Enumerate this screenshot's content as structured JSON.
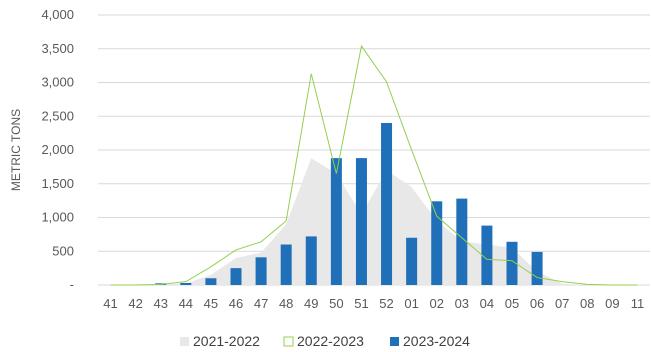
{
  "chart_data": {
    "type": "bar",
    "ylabel": "METRIC TONS",
    "ylim": [
      0,
      4000
    ],
    "y_ticks": [
      {
        "value": 0,
        "label": "-"
      },
      {
        "value": 500,
        "label": "500"
      },
      {
        "value": 1000,
        "label": "1,000"
      },
      {
        "value": 1500,
        "label": "1,500"
      },
      {
        "value": 2000,
        "label": "2,000"
      },
      {
        "value": 2500,
        "label": "2,500"
      },
      {
        "value": 3000,
        "label": "3,000"
      },
      {
        "value": 3500,
        "label": "3,500"
      },
      {
        "value": 4000,
        "label": "4,000"
      }
    ],
    "categories": [
      "41",
      "42",
      "43",
      "44",
      "45",
      "46",
      "47",
      "48",
      "49",
      "50",
      "51",
      "52",
      "01",
      "02",
      "03",
      "04",
      "05",
      "06",
      "07",
      "08",
      "09",
      "11"
    ],
    "grid": true,
    "legend_position": "bottom",
    "series": [
      {
        "name": "2021-2022",
        "type": "area",
        "color": "#e8e8e8",
        "values": [
          0,
          0,
          10,
          20,
          150,
          400,
          480,
          900,
          1880,
          1650,
          1050,
          1700,
          1450,
          950,
          650,
          600,
          550,
          200,
          20,
          0,
          0,
          0
        ]
      },
      {
        "name": "2022-2023",
        "type": "line",
        "color": "#92d050",
        "values": [
          0,
          0,
          10,
          50,
          270,
          520,
          640,
          950,
          3130,
          1650,
          3540,
          3010,
          2000,
          1020,
          700,
          380,
          360,
          110,
          50,
          10,
          0,
          0
        ]
      },
      {
        "name": "2023-2024",
        "type": "bar",
        "color": "#1f70b8",
        "values": [
          0,
          0,
          25,
          30,
          100,
          250,
          410,
          600,
          720,
          1880,
          1880,
          2400,
          700,
          1240,
          1280,
          880,
          640,
          490,
          null,
          null,
          null,
          null
        ]
      }
    ]
  }
}
